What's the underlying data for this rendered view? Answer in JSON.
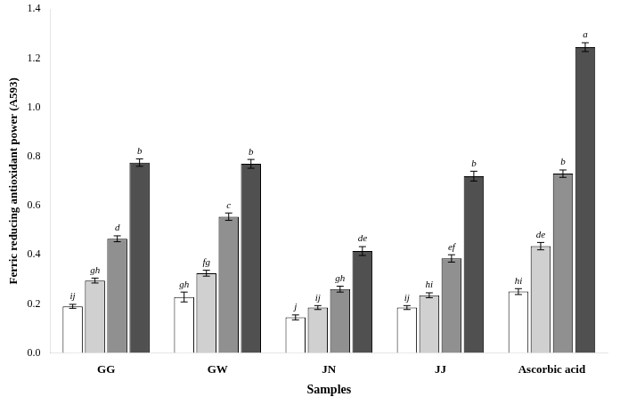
{
  "chart_data": {
    "type": "bar",
    "xlabel": "Samples",
    "ylabel": "Ferric reducing antioxidant power (A593)",
    "categories": [
      "GG",
      "GW",
      "JN",
      "JJ",
      "Ascorbic acid"
    ],
    "series": [
      {
        "color": "#ffffff",
        "values": [
          0.19,
          0.228,
          0.145,
          0.185,
          0.25
        ],
        "errors": [
          0.008,
          0.02,
          0.01,
          0.008,
          0.012
        ],
        "annotations": [
          "ij",
          "gh",
          "j",
          "ij",
          "hi"
        ]
      },
      {
        "color": "#d0d0d0",
        "values": [
          0.295,
          0.325,
          0.185,
          0.235,
          0.435
        ],
        "errors": [
          0.01,
          0.012,
          0.008,
          0.01,
          0.015
        ],
        "annotations": [
          "gh",
          "fg",
          "ij",
          "hi",
          "de"
        ]
      },
      {
        "color": "#909090",
        "values": [
          0.465,
          0.555,
          0.26,
          0.385,
          0.73
        ],
        "errors": [
          0.012,
          0.015,
          0.012,
          0.015,
          0.015
        ],
        "annotations": [
          "d",
          "c",
          "gh",
          "ef",
          "b"
        ]
      },
      {
        "color": "#505050",
        "values": [
          0.775,
          0.77,
          0.415,
          0.72,
          1.245
        ],
        "errors": [
          0.015,
          0.018,
          0.018,
          0.02,
          0.018
        ],
        "annotations": [
          "b",
          "b",
          "de",
          "b",
          "a"
        ]
      }
    ],
    "ylim": [
      0.0,
      1.4
    ],
    "yticks": [
      {
        "value": 0,
        "label": "0.0"
      },
      0.2,
      0.4,
      0.6,
      0.8,
      {
        "value": 1,
        "label": "1.0"
      },
      1.2,
      1.4
    ],
    "grid": false
  }
}
